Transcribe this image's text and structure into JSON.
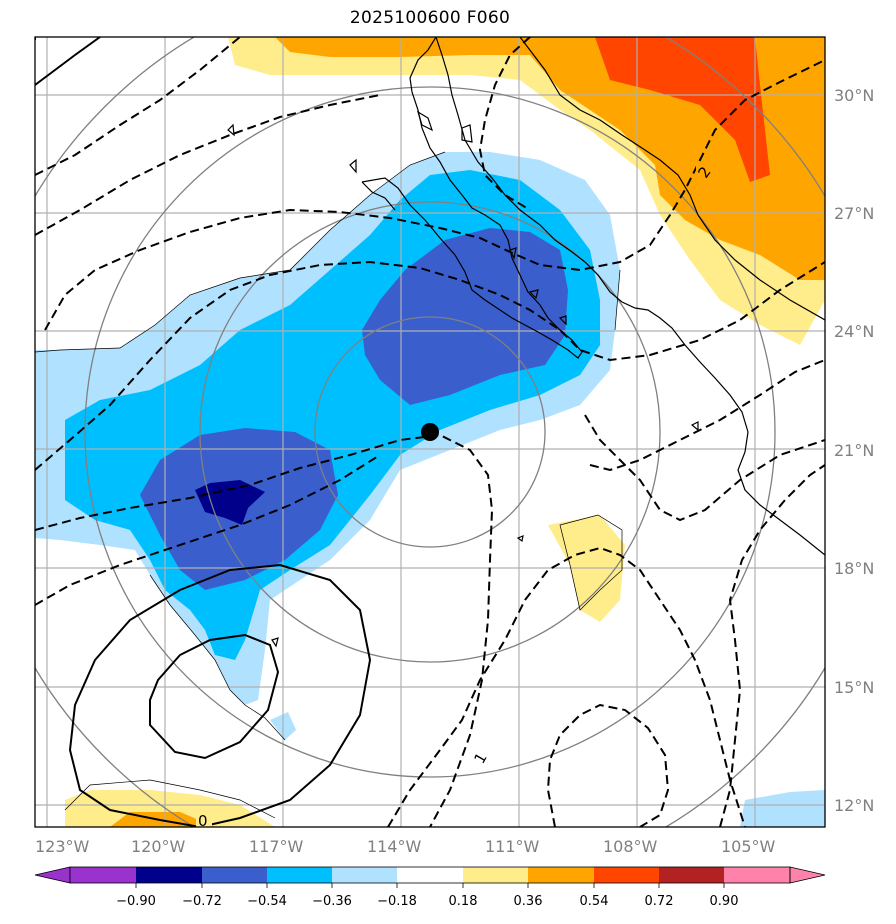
{
  "title": "2025100600 F060",
  "lon_labels": [
    "123°W",
    "120°W",
    "117°W",
    "114°W",
    "111°W",
    "108°W",
    "105°W"
  ],
  "lat_labels": [
    "30°N",
    "27°N",
    "24°N",
    "21°N",
    "18°N",
    "15°N",
    "12°N"
  ],
  "colorbar": {
    "ticks": [
      "−0.90",
      "−0.72",
      "−0.54",
      "−0.36",
      "−0.18",
      "0.18",
      "0.36",
      "0.54",
      "0.72",
      "0.90"
    ],
    "colors": [
      "#9a32cd",
      "#00008b",
      "#3a5fcd",
      "#00bfff",
      "#b0e2ff",
      "#ffffff",
      "#ffec8b",
      "#ffa500",
      "#ff4500",
      "#b22222",
      "#ff82ab"
    ]
  },
  "contour_labels": {
    "zero": "0",
    "one": "1",
    "two": "2"
  },
  "colors": {
    "coast": "#000000",
    "grid": "#b0b0b0",
    "rings": "#808080"
  }
}
